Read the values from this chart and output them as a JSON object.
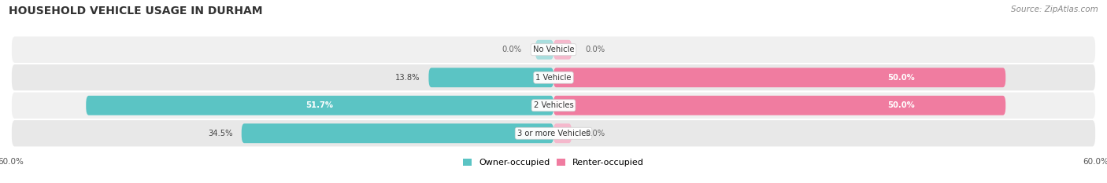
{
  "title": "HOUSEHOLD VEHICLE USAGE IN DURHAM",
  "source": "Source: ZipAtlas.com",
  "categories": [
    "No Vehicle",
    "1 Vehicle",
    "2 Vehicles",
    "3 or more Vehicles"
  ],
  "owner_values": [
    0.0,
    13.8,
    51.7,
    34.5
  ],
  "renter_values": [
    0.0,
    50.0,
    50.0,
    0.0
  ],
  "owner_color": "#5bc4c4",
  "renter_color": "#f07ca0",
  "renter_color_light": "#f5b8cc",
  "owner_color_light": "#a8dede",
  "row_bg_even": "#f0f0f0",
  "row_bg_odd": "#e8e8e8",
  "xlim": 60.0,
  "legend_owner": "Owner-occupied",
  "legend_renter": "Renter-occupied",
  "title_fontsize": 10,
  "label_fontsize": 7.5,
  "axis_label_fontsize": 7.5,
  "source_fontsize": 7.5,
  "bar_height": 0.68
}
